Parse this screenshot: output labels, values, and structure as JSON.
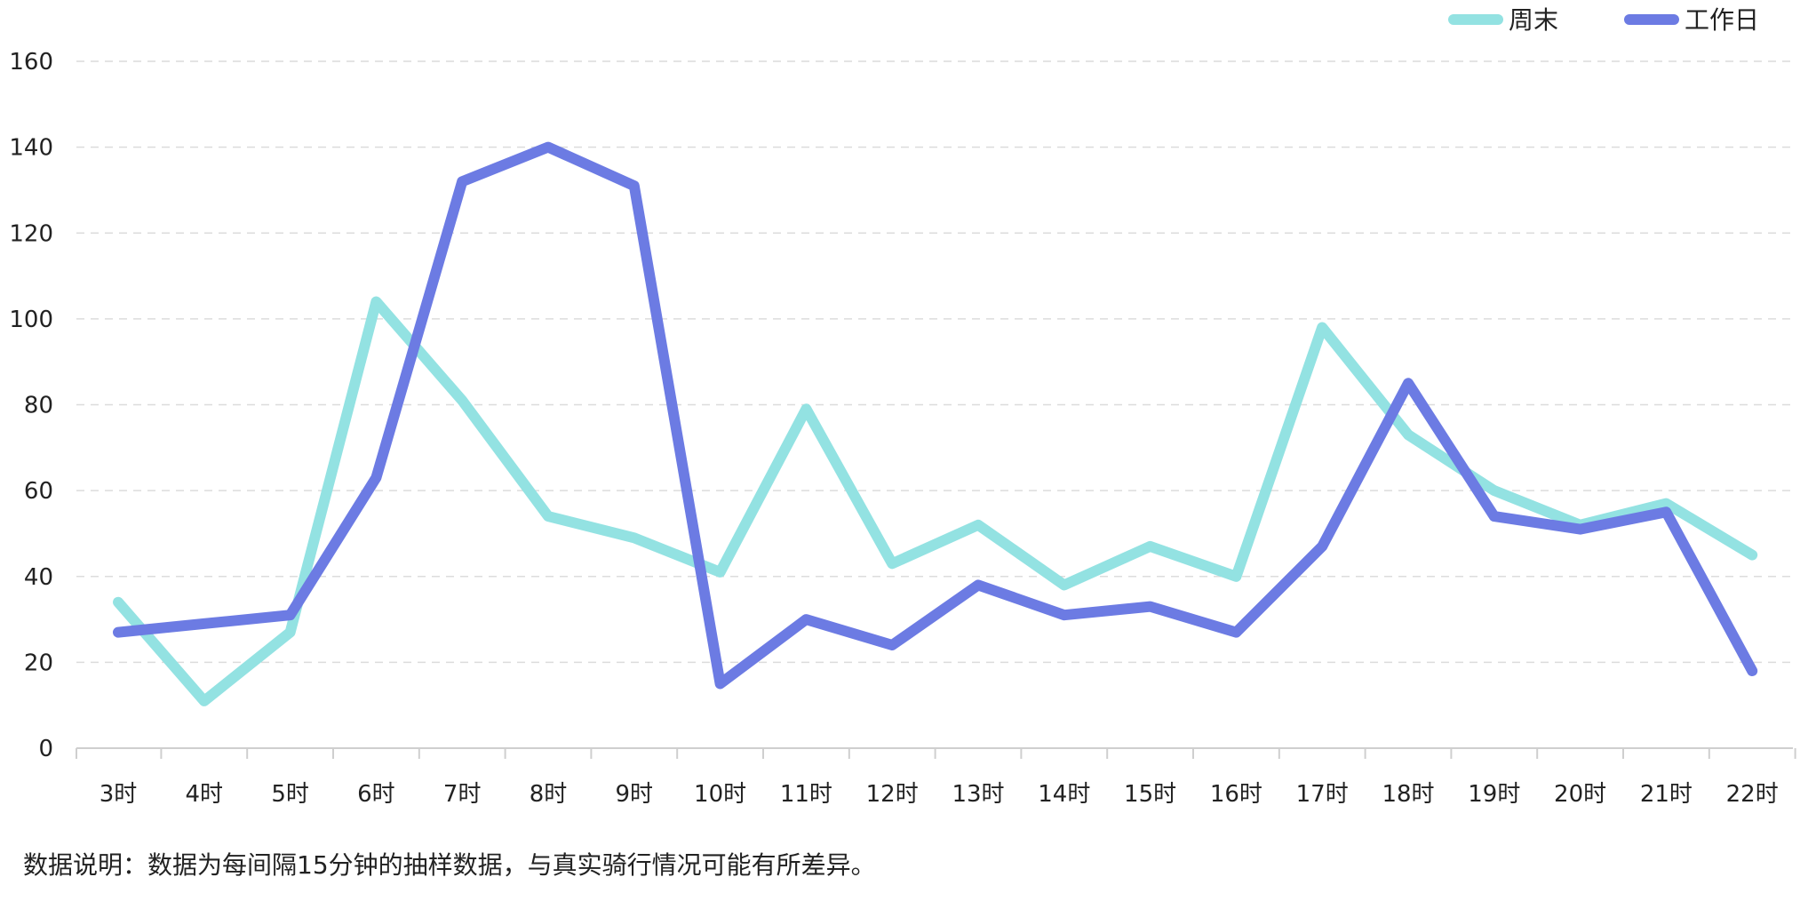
{
  "chart_data": {
    "type": "line",
    "categories": [
      "3时",
      "4时",
      "5时",
      "6时",
      "7时",
      "8时",
      "9时",
      "10时",
      "11时",
      "12时",
      "13时",
      "14时",
      "15时",
      "16时",
      "17时",
      "18时",
      "19时",
      "20时",
      "21时",
      "22时"
    ],
    "series": [
      {
        "name": "周末",
        "color": "#93e2e2",
        "values": [
          34,
          11,
          27,
          104,
          81,
          54,
          49,
          41,
          79,
          43,
          52,
          38,
          47,
          40,
          98,
          73,
          60,
          52,
          57,
          45
        ]
      },
      {
        "name": "工作日",
        "color": "#6c7be3",
        "values": [
          27,
          29,
          31,
          63,
          132,
          140,
          131,
          15,
          30,
          24,
          38,
          31,
          33,
          27,
          47,
          85,
          54,
          51,
          55,
          18
        ]
      }
    ],
    "ylim": [
      0,
      160
    ],
    "yticks": [
      0,
      20,
      40,
      60,
      80,
      100,
      120,
      140,
      160
    ],
    "grid": true,
    "legend_position": "top-right",
    "title": "",
    "xlabel": "",
    "ylabel": ""
  },
  "footnote": "数据说明：数据为每间隔15分钟的抽样数据，与真实骑行情况可能有所差异。"
}
